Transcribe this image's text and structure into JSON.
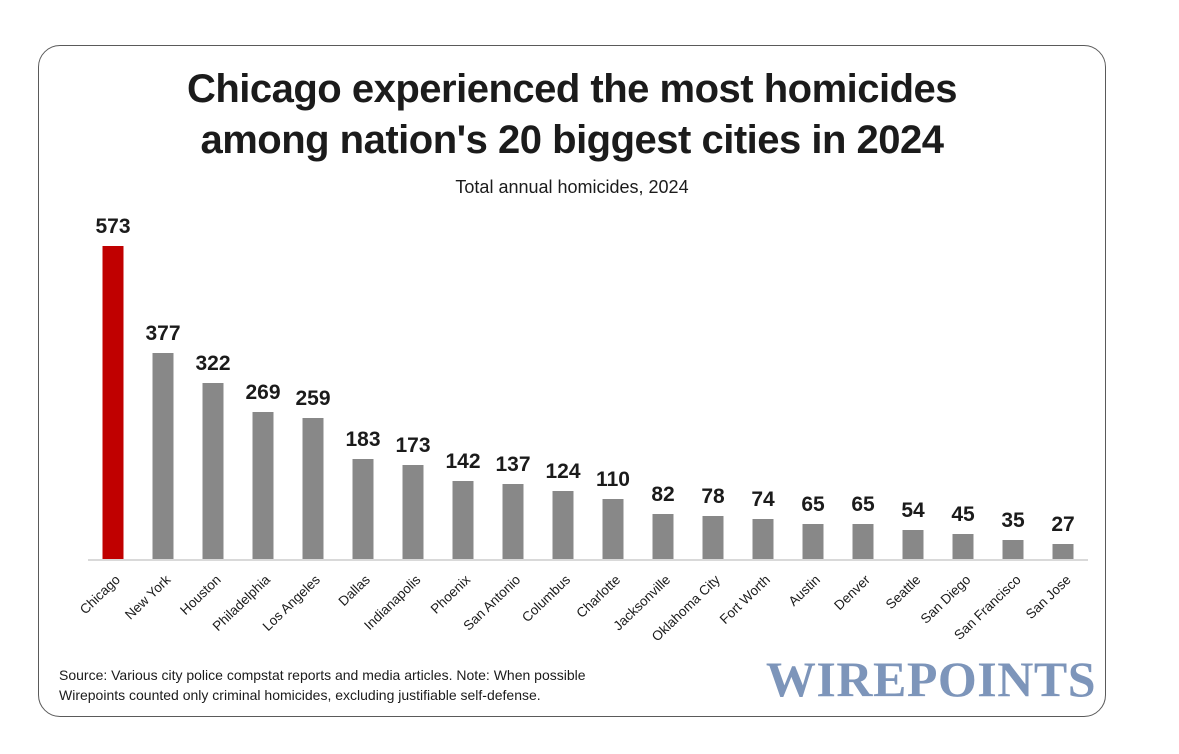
{
  "chart_data": {
    "type": "bar",
    "title": "Chicago experienced the most homicides among nation's 20 biggest cities in 2024",
    "title_lines": [
      "Chicago experienced the most homicides",
      "among nation's 20 biggest cities in 2024"
    ],
    "subtitle": "Total annual homicides, 2024",
    "categories": [
      "Chicago",
      "New York",
      "Houston",
      "Philadelphia",
      "Los Angeles",
      "Dallas",
      "Indianapolis",
      "Phoenix",
      "San Antonio",
      "Columbus",
      "Charlotte",
      "Jacksonville",
      "Oklahoma City",
      "Fort Worth",
      "Austin",
      "Denver",
      "Seattle",
      "San Diego",
      "San Francisco",
      "San Jose"
    ],
    "values": [
      573,
      377,
      322,
      269,
      259,
      183,
      173,
      142,
      137,
      124,
      110,
      82,
      78,
      74,
      65,
      65,
      54,
      45,
      35,
      27
    ],
    "highlight_category": "Chicago",
    "bar_color_highlight": "#c00000",
    "bar_color_default": "#888888",
    "value_labels": true,
    "grid": false,
    "legend": false,
    "xlabel": "",
    "ylabel": "",
    "ylim": [
      0,
      573
    ],
    "x_tick_rotation": 44
  },
  "footer": {
    "source_line1": "Source: Various city police compstat reports and media articles. Note: When possible",
    "source_line2": "Wirepoints counted only criminal homicides, excluding justifiable self-defense.",
    "logo_text": "WIREPOINTS",
    "logo_color": "#7d95ba"
  }
}
